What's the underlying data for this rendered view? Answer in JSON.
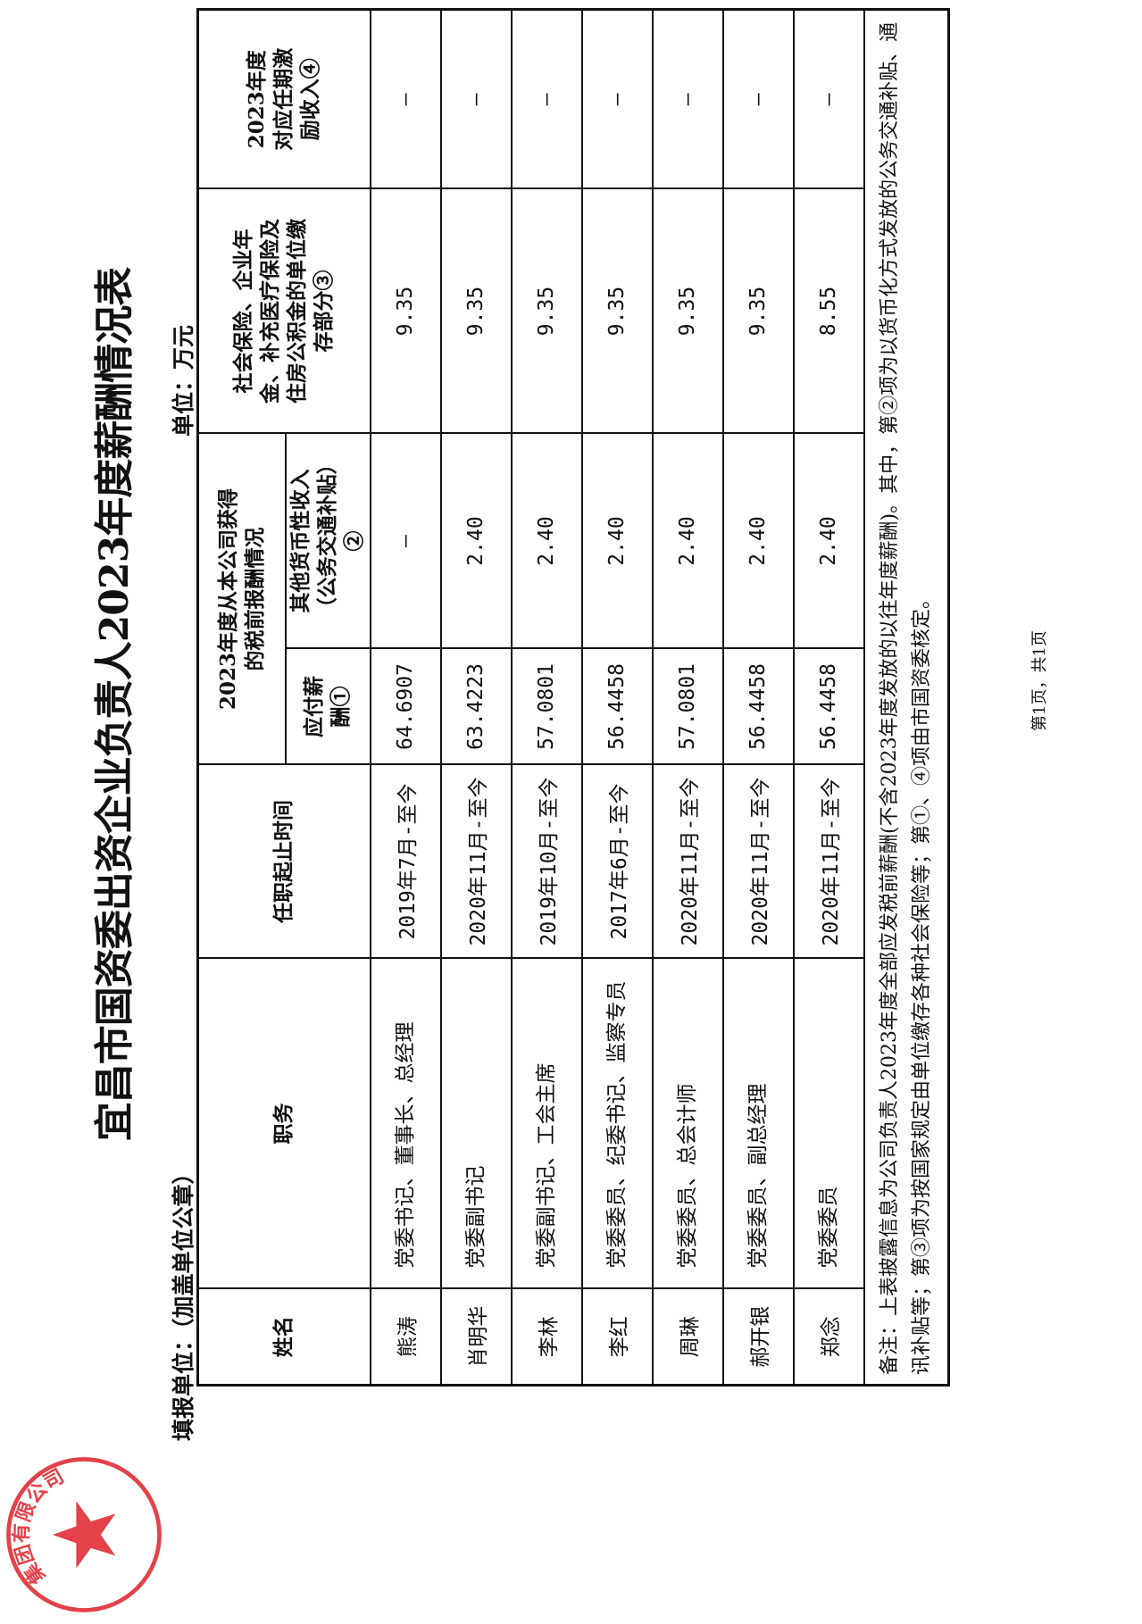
{
  "title": "宜昌市国资委出资企业负责人2023年度薪酬情况表",
  "fill_unit": "填报单位：（加盖单位公章）",
  "unit": "单位：万元",
  "seal": {
    "text": "集团有限公司",
    "color": "#e0202a"
  },
  "headers": {
    "name": "姓名",
    "position": "职务",
    "tenure": "任职起止时间",
    "group": "2023年度从本公司获得的税前报酬情况",
    "salary": "应付薪酬①",
    "other_income": "其他货币性收入（公务交通补贴）②",
    "insurance": "社会保险、企业年金、补充医疗保险及住房公积金的单位缴存部分③",
    "incentive": "2023年度对应任期激励收入④"
  },
  "rows": [
    {
      "name": "熊涛",
      "position": "党委书记、董事长、总经理",
      "tenure": "2019年7月-至今",
      "salary": "64.6907",
      "other_income": "–",
      "insurance": "9.35",
      "incentive": "–"
    },
    {
      "name": "肖明华",
      "position": "党委副书记",
      "tenure": "2020年11月-至今",
      "salary": "63.4223",
      "other_income": "2.40",
      "insurance": "9.35",
      "incentive": "–"
    },
    {
      "name": "李林",
      "position": "党委副书记、工会主席",
      "tenure": "2019年10月-至今",
      "salary": "57.0801",
      "other_income": "2.40",
      "insurance": "9.35",
      "incentive": "–"
    },
    {
      "name": "李红",
      "position": "党委委员、纪委书记、监察专员",
      "tenure": "2017年6月-至今",
      "salary": "56.4458",
      "other_income": "2.40",
      "insurance": "9.35",
      "incentive": "–"
    },
    {
      "name": "周琳",
      "position": "党委委员、总会计师",
      "tenure": "2020年11月-至今",
      "salary": "57.0801",
      "other_income": "2.40",
      "insurance": "9.35",
      "incentive": "–"
    },
    {
      "name": "郝开银",
      "position": "党委委员、副总经理",
      "tenure": "2020年11月-至今",
      "salary": "56.4458",
      "other_income": "2.40",
      "insurance": "9.35",
      "incentive": "–"
    },
    {
      "name": "郑念",
      "position": "党委委员",
      "tenure": "2020年11月-至今",
      "salary": "56.4458",
      "other_income": "2.40",
      "insurance": "8.55",
      "incentive": "–"
    }
  ],
  "notes": "备注：上表披露信息为公司负责人2023年度全部应发税前薪酬(不含2023年度发放的以往年度薪酬)。其中，第②项为以货币化方式发放的公务交通补贴、通讯补贴等；第③项为按国家规定由单位缴存各种社会保险等；第①、④项由市国资委核定。",
  "footer": "第1页，共1页"
}
